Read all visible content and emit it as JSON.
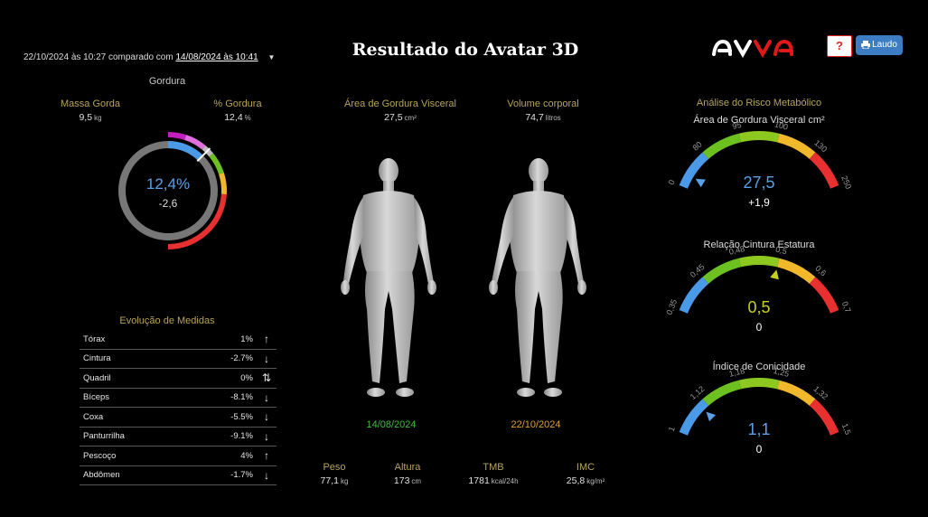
{
  "header": {
    "title": "Resultado do Avatar 3D",
    "compare_prefix": "22/10/2024 às 10:27 comparado com",
    "compare_date": "14/08/2024 às 10:41",
    "help_label": "?",
    "laudo_label": "Laudo",
    "brand": "avva"
  },
  "gordura": {
    "section_title": "Gordura",
    "massa_label": "Massa Gorda",
    "massa_value": "9,5",
    "massa_unit": "kg",
    "pct_label": "% Gordura",
    "pct_value": "12,4",
    "pct_unit": "%",
    "ring_value": "12,4%",
    "ring_delta": "-2,6",
    "ring_fraction": 0.124
  },
  "evolucao": {
    "title": "Evolução de Medidas",
    "rows": [
      {
        "name": "Tórax",
        "value": "1%",
        "trend": "up"
      },
      {
        "name": "Cintura",
        "value": "-2.7%",
        "trend": "down"
      },
      {
        "name": "Quadril",
        "value": "0%",
        "trend": "both"
      },
      {
        "name": "Bíceps",
        "value": "-8.1%",
        "trend": "down"
      },
      {
        "name": "Coxa",
        "value": "-5.5%",
        "trend": "down"
      },
      {
        "name": "Panturrilha",
        "value": "-9.1%",
        "trend": "down"
      },
      {
        "name": "Pescoço",
        "value": "4%",
        "trend": "up"
      },
      {
        "name": "Abdômen",
        "value": "-1.7%",
        "trend": "down"
      }
    ]
  },
  "avatar": {
    "visceral_label": "Área de Gordura Visceral",
    "visceral_value": "27,5",
    "visceral_unit": "cm²",
    "volume_label": "Volume corporal",
    "volume_value": "74,7",
    "volume_unit": "litros",
    "date_before": "14/08/2024",
    "date_after": "22/10/2024",
    "color_before": "#3fbf3f",
    "color_after": "#e0a030"
  },
  "footer": {
    "peso_label": "Peso",
    "peso_value": "77,1",
    "peso_unit": "kg",
    "altura_label": "Altura",
    "altura_value": "173",
    "altura_unit": "cm",
    "tmb_label": "TMB",
    "tmb_value": "1781",
    "tmb_unit": "kcal/24h",
    "imc_label": "IMC",
    "imc_value": "25,8",
    "imc_unit": "kg/m²"
  },
  "risco": {
    "section_title": "Análise do Risco Metabólico",
    "gauges": [
      {
        "title": "Área de Gordura Visceral cm²",
        "ticks": [
          "0",
          "80",
          "95",
          "100",
          "130",
          "250"
        ],
        "value": "27,5",
        "delta": "+1,9",
        "value_color": "#5aa0e6",
        "pointer_value": 27.5,
        "tick_values": [
          0,
          80,
          95,
          100,
          130,
          250
        ]
      },
      {
        "title": "Relação Cintura Estatura",
        "ticks": [
          "0,35",
          "0,45",
          "0,48",
          "0,5",
          "0,6",
          "0,7"
        ],
        "value": "0,5",
        "delta": "0",
        "value_color": "#c8d020",
        "pointer_value": 0.5,
        "tick_values": [
          0.35,
          0.45,
          0.48,
          0.5,
          0.6,
          0.7
        ]
      },
      {
        "title": "Índice de Conicidade",
        "ticks": [
          "1",
          "1,12",
          "1,18",
          "1,25",
          "1,32",
          "1,5"
        ],
        "value": "1,1",
        "delta": "0",
        "value_color": "#5aa0e6",
        "pointer_value": 1.1,
        "tick_values": [
          1,
          1.12,
          1.18,
          1.25,
          1.32,
          1.5
        ]
      }
    ]
  },
  "colors": {
    "blue": "#4a9ae8",
    "green": "#6cc020",
    "yellow": "#f0b82a",
    "red": "#e83030",
    "magenta": "#c020c0"
  }
}
